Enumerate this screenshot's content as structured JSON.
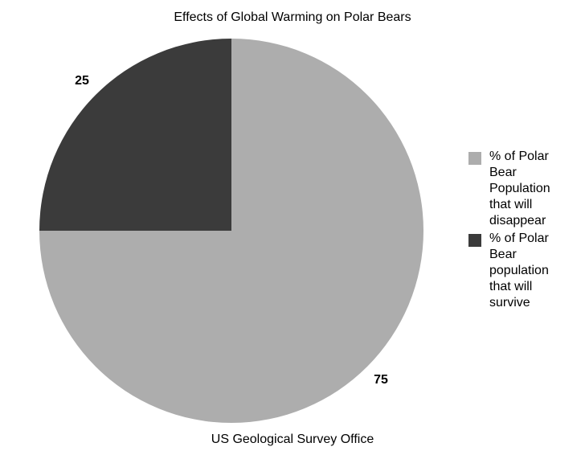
{
  "chart_data": {
    "type": "pie",
    "title": "Effects of Global Warming on Polar Bears",
    "subtitle": "US Geological Survey Office",
    "legend_position": "right",
    "slices": [
      {
        "label": "% of Polar Bear Population that will disappear",
        "value": 75,
        "color": "#adadad",
        "data_label": "75"
      },
      {
        "label": "% of Polar Bear population that will survive",
        "value": 25,
        "color": "#3b3b3b",
        "data_label": "25"
      }
    ]
  }
}
